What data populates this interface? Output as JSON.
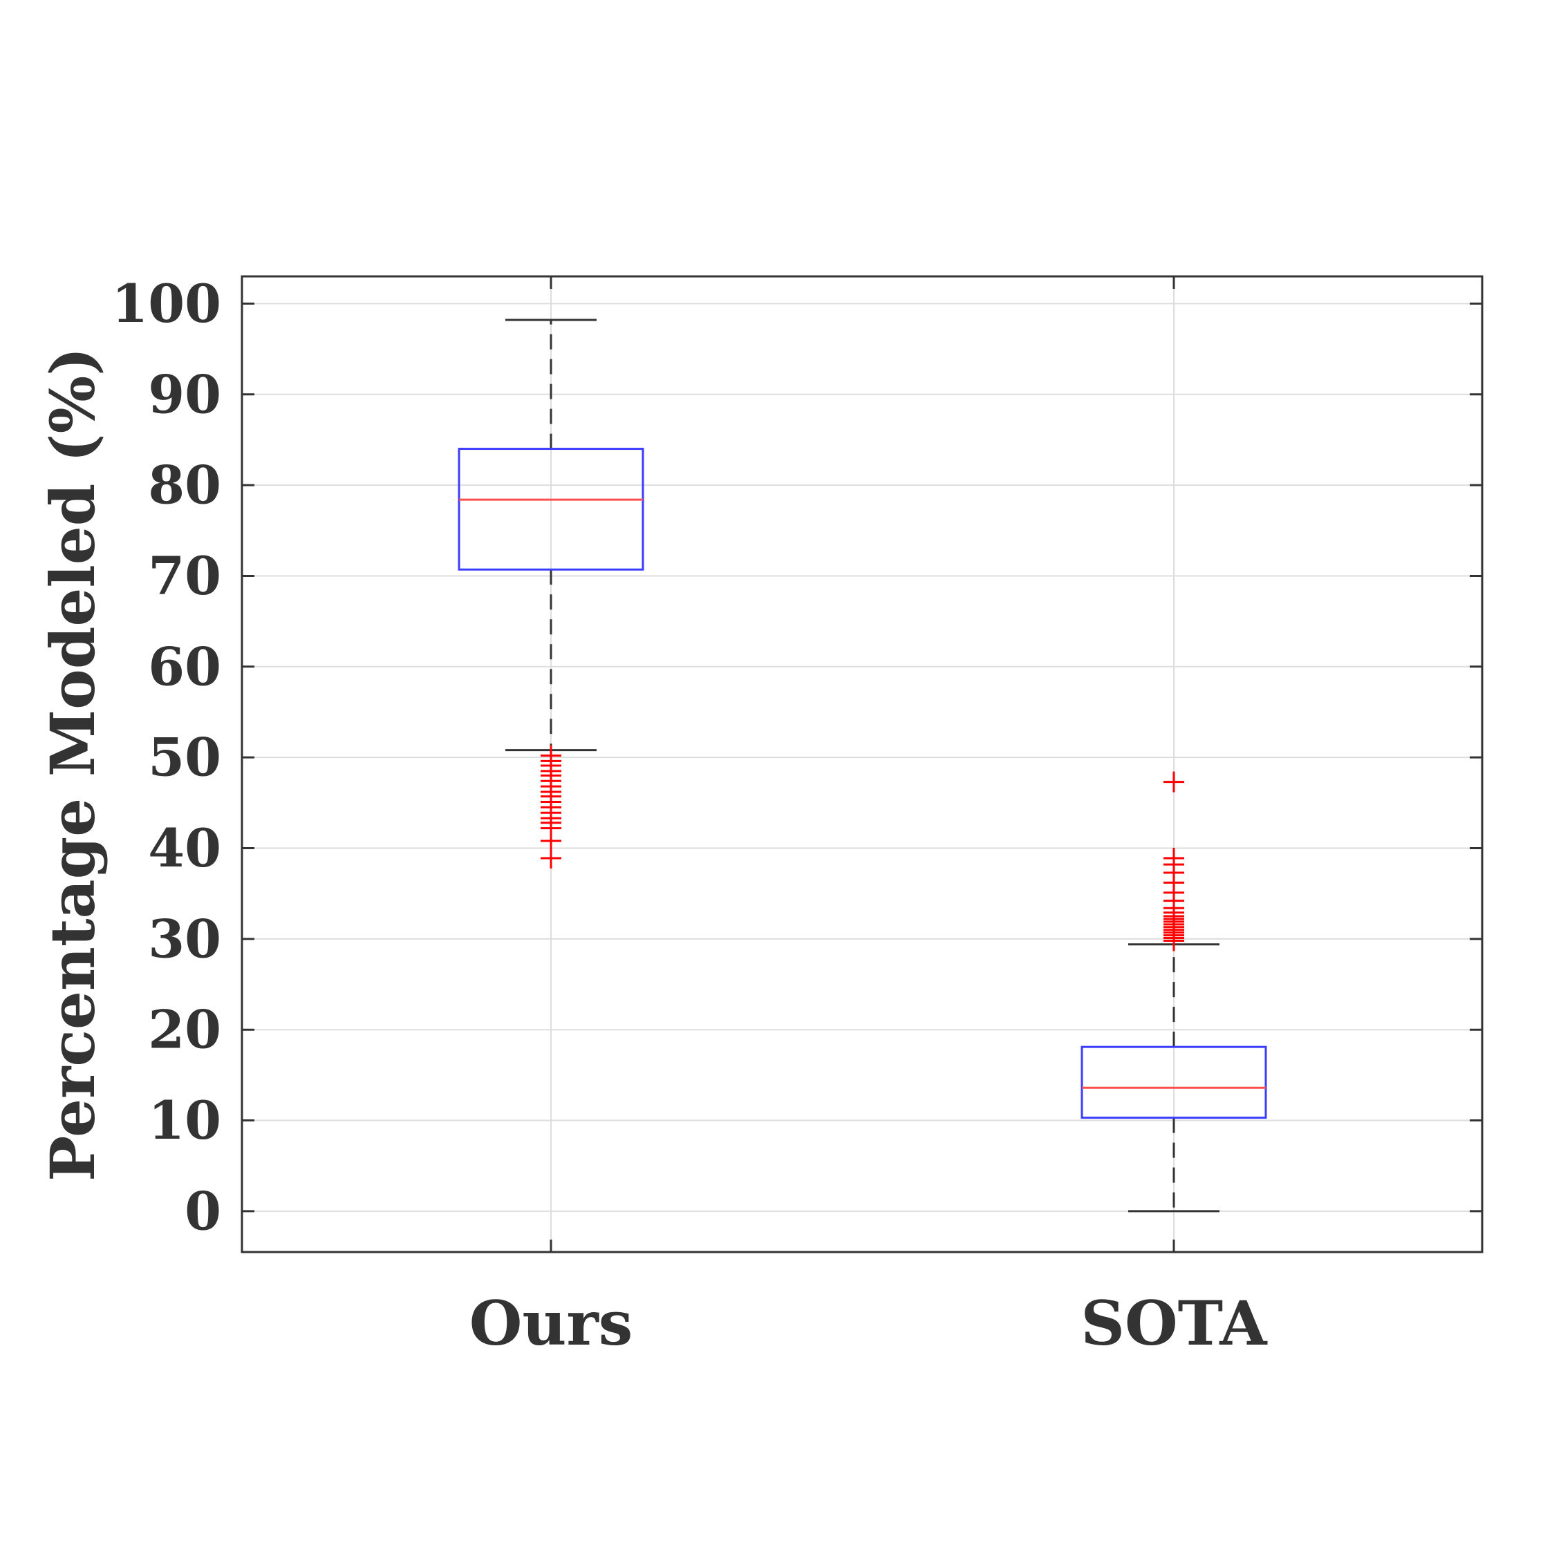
{
  "chart_data": {
    "type": "box",
    "title": "",
    "xlabel": "",
    "ylabel": "Percentage Modeled (%)",
    "ylim": [
      -4.5,
      103
    ],
    "yticks": [
      0,
      10,
      20,
      30,
      40,
      50,
      60,
      70,
      80,
      90,
      100
    ],
    "ytick_labels": [
      "0",
      "10",
      "20",
      "30",
      "40",
      "50",
      "60",
      "70",
      "80",
      "90",
      "100"
    ],
    "grid": true,
    "categories": [
      "Ours",
      "SOTA"
    ],
    "boxes": [
      {
        "name": "Ours",
        "whisker_low": 50.8,
        "q1": 70.7,
        "median": 78.4,
        "q3": 84.0,
        "whisker_high": 98.2,
        "outliers": [
          50.2,
          49.6,
          49.1,
          48.5,
          48.0,
          47.4,
          46.8,
          46.2,
          45.7,
          45.1,
          44.5,
          43.9,
          43.3,
          42.8,
          42.2,
          40.8,
          38.9
        ]
      },
      {
        "name": "SOTA",
        "whisker_low": 0,
        "q1": 10.3,
        "median": 13.6,
        "q3": 18.1,
        "whisker_high": 29.4,
        "outliers": [
          47.3,
          38.9,
          38.2,
          37.3,
          36.2,
          35.1,
          34.2,
          33.4,
          32.9,
          32.5,
          32.2,
          31.9,
          31.6,
          31.3,
          31.0,
          30.7,
          30.4,
          30.1,
          29.8
        ]
      }
    ],
    "colors": {
      "box": "#3c3cff",
      "median": "#ff4d4d",
      "whisker": "#333333",
      "outlier": "#ff0000",
      "grid": "#dddddd",
      "axis": "#333333",
      "text": "#333333"
    }
  }
}
